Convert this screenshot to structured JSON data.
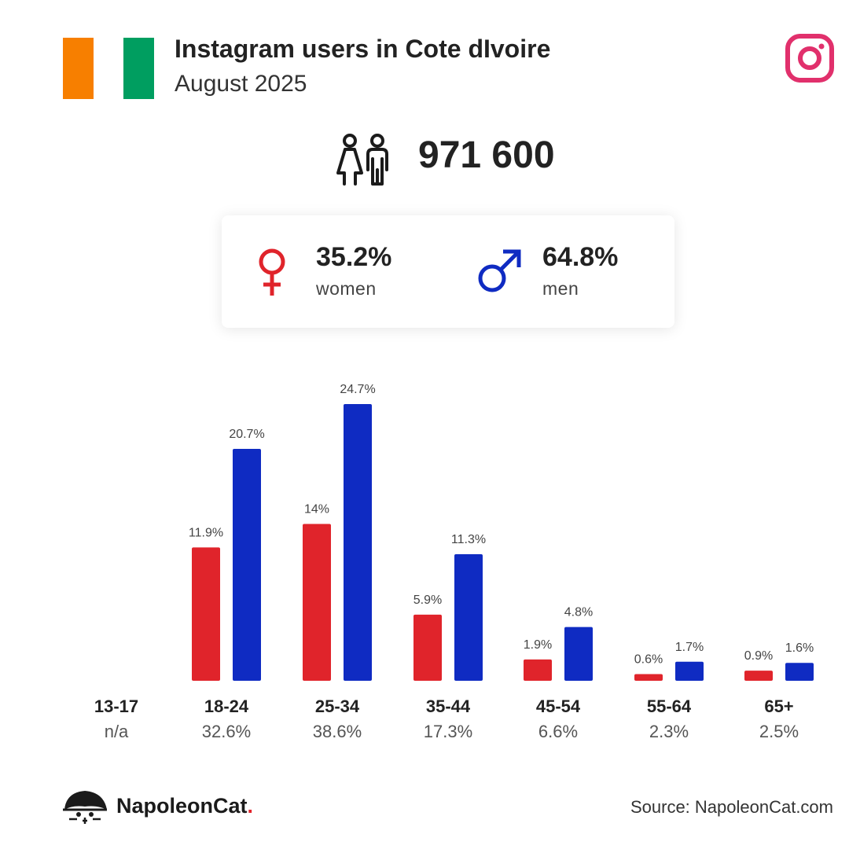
{
  "header": {
    "title": "Instagram users in Cote dIvoire",
    "subtitle": "August 2025",
    "flag_colors": [
      "#F77F00",
      "#FFFFFF",
      "#009E60"
    ],
    "brand_icon": "instagram-icon",
    "brand_icon_color": "#E1306C"
  },
  "total": {
    "icon": "users-icon",
    "value": "971 600"
  },
  "gender": {
    "women": {
      "icon": "female-symbol-icon",
      "pct": "35.2%",
      "label": "women",
      "color": "#E0242B"
    },
    "men": {
      "icon": "male-symbol-icon",
      "pct": "64.8%",
      "label": "men",
      "color": "#0F2BC2"
    }
  },
  "chart_data": {
    "type": "bar",
    "categories": [
      "13-17",
      "18-24",
      "25-34",
      "35-44",
      "45-54",
      "55-64",
      "65+"
    ],
    "category_totals": [
      "n/a",
      "32.6%",
      "38.6%",
      "17.3%",
      "6.6%",
      "2.3%",
      "2.5%"
    ],
    "series": [
      {
        "values": [
          null,
          11.9,
          14,
          5.9,
          1.9,
          0.6,
          0.9
        ],
        "labels": [
          "",
          "11.9%",
          "14%",
          "5.9%",
          "1.9%",
          "0.6%",
          "0.9%"
        ],
        "color": "#E0242B"
      },
      {
        "values": [
          null,
          20.7,
          24.7,
          11.3,
          4.8,
          1.7,
          1.6
        ],
        "labels": [
          "",
          "20.7%",
          "24.7%",
          "11.3%",
          "4.8%",
          "1.7%",
          "1.6%"
        ],
        "color": "#0F2BC2"
      }
    ],
    "ylim": [
      0,
      24.7
    ],
    "grid": false,
    "legend": "none"
  },
  "footer": {
    "brand_icon": "napoleoncat-logo-icon",
    "brand_name": "NapoleonCat",
    "brand_dot": ".",
    "source": "Source: NapoleonCat.com"
  }
}
